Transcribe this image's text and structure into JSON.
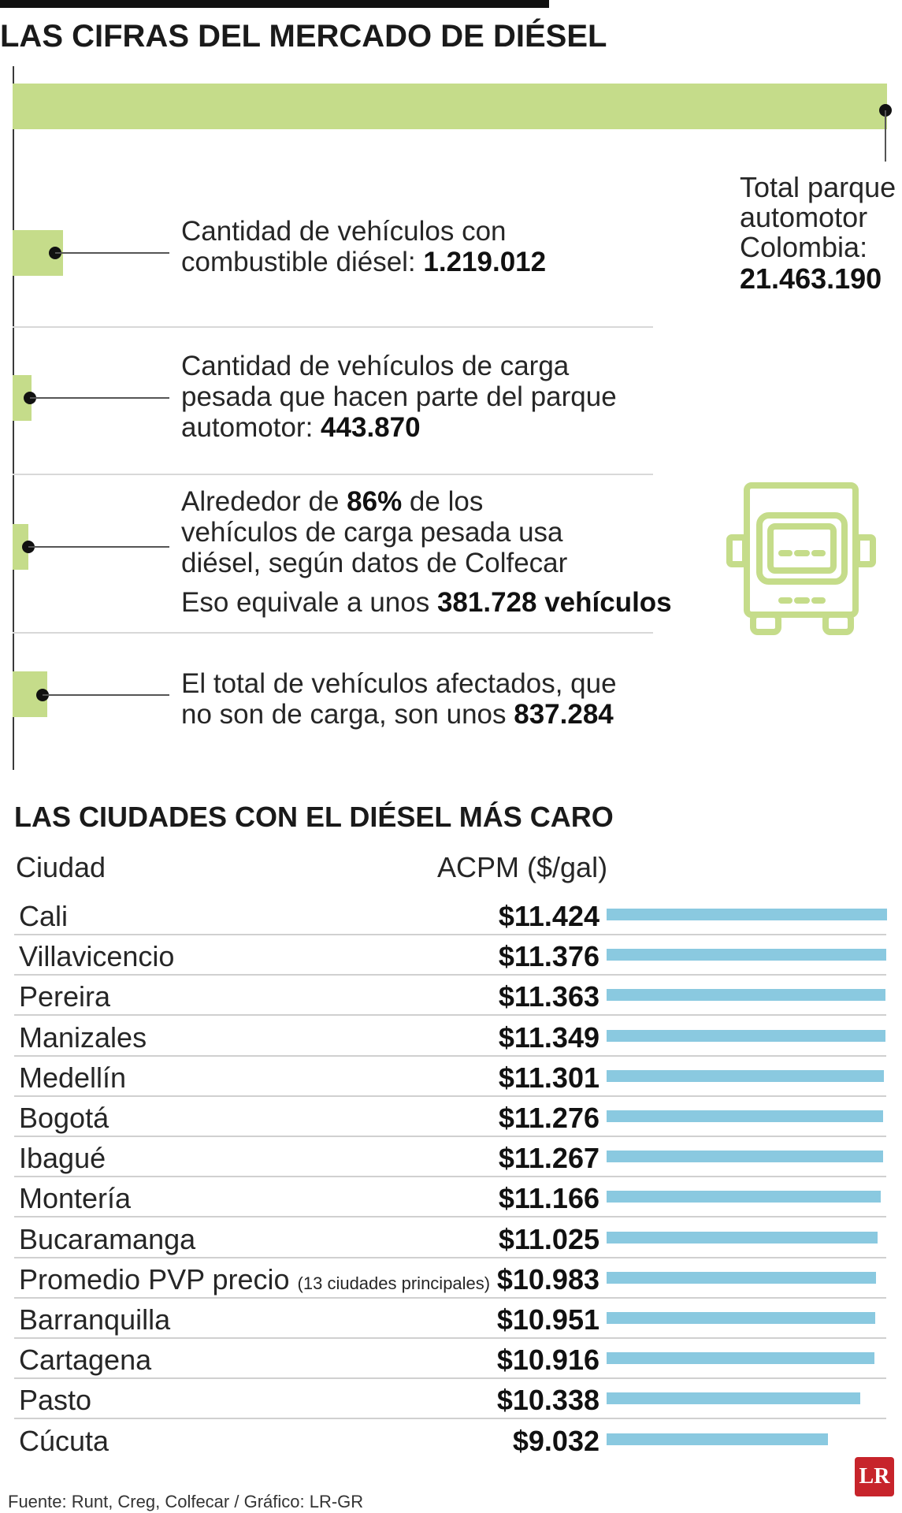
{
  "title": "LAS CIFRAS DEL MERCADO DE DIÉSEL",
  "total": {
    "label_lines": [
      "Total parque",
      "automotor",
      "Colombia:"
    ],
    "value": "21.463.190"
  },
  "facts": [
    {
      "lines": [
        {
          "pre": "Cantidad de vehículos con",
          "bold": "",
          "post": ""
        },
        {
          "pre": "combustible diésel: ",
          "bold": "1.219.012",
          "post": ""
        }
      ]
    },
    {
      "lines": [
        {
          "pre": "Cantidad de vehículos de carga",
          "bold": "",
          "post": ""
        },
        {
          "pre": "pesada que hacen parte del parque",
          "bold": "",
          "post": ""
        },
        {
          "pre": "automotor: ",
          "bold": "443.870",
          "post": ""
        }
      ]
    },
    {
      "lines": [
        {
          "pre": "Alrededor de ",
          "bold": "86%",
          "post": " de los"
        },
        {
          "pre": "vehículos de carga pesada usa",
          "bold": "",
          "post": ""
        },
        {
          "pre": "diésel, según datos de Colfecar",
          "bold": "",
          "post": ""
        }
      ],
      "extra": {
        "pre": "Eso equivale a unos ",
        "bold": "381.728 vehículos"
      }
    },
    {
      "lines": [
        {
          "pre": "El total de vehículos afectados, que",
          "bold": "",
          "post": ""
        },
        {
          "pre": "no son de carga, son unos ",
          "bold": "837.284",
          "post": ""
        }
      ]
    }
  ],
  "chart_data": {
    "type": "bar",
    "title": "LAS CIUDADES CON EL DIÉSEL MÁS CARO",
    "column_headers": [
      "Ciudad",
      "ACPM ($/gal)"
    ],
    "categories": [
      "Cali",
      "Villavicencio",
      "Pereira",
      "Manizales",
      "Medellín",
      "Bogotá",
      "Ibagué",
      "Montería",
      "Bucaramanga",
      "Promedio PVP precio",
      "Barranquilla",
      "Cartagena",
      "Pasto",
      "Cúcuta"
    ],
    "category_notes": [
      "",
      "",
      "",
      "",
      "",
      "",
      "",
      "",
      "",
      "(13 ciudades principales)",
      "",
      "",
      "",
      ""
    ],
    "values": [
      11424,
      11376,
      11363,
      11349,
      11301,
      11276,
      11267,
      11166,
      11025,
      10983,
      10951,
      10916,
      10338,
      9032
    ],
    "value_labels": [
      "$11.424",
      "$11.376",
      "$11.363",
      "$11.349",
      "$11.301",
      "$11.276",
      "$11.267",
      "$11.166",
      "$11.025",
      "$10.983",
      "$10.951",
      "$10.916",
      "$10.338",
      "$9.032"
    ],
    "bar_color": "#8ac9e0"
  },
  "source": "Fuente: Runt, Creg, Colfecar / Gráfico: LR-GR",
  "logo": "LR",
  "colors": {
    "green": "#c5dc8a",
    "bar": "#8ac9e0",
    "logo": "#c7242b"
  }
}
